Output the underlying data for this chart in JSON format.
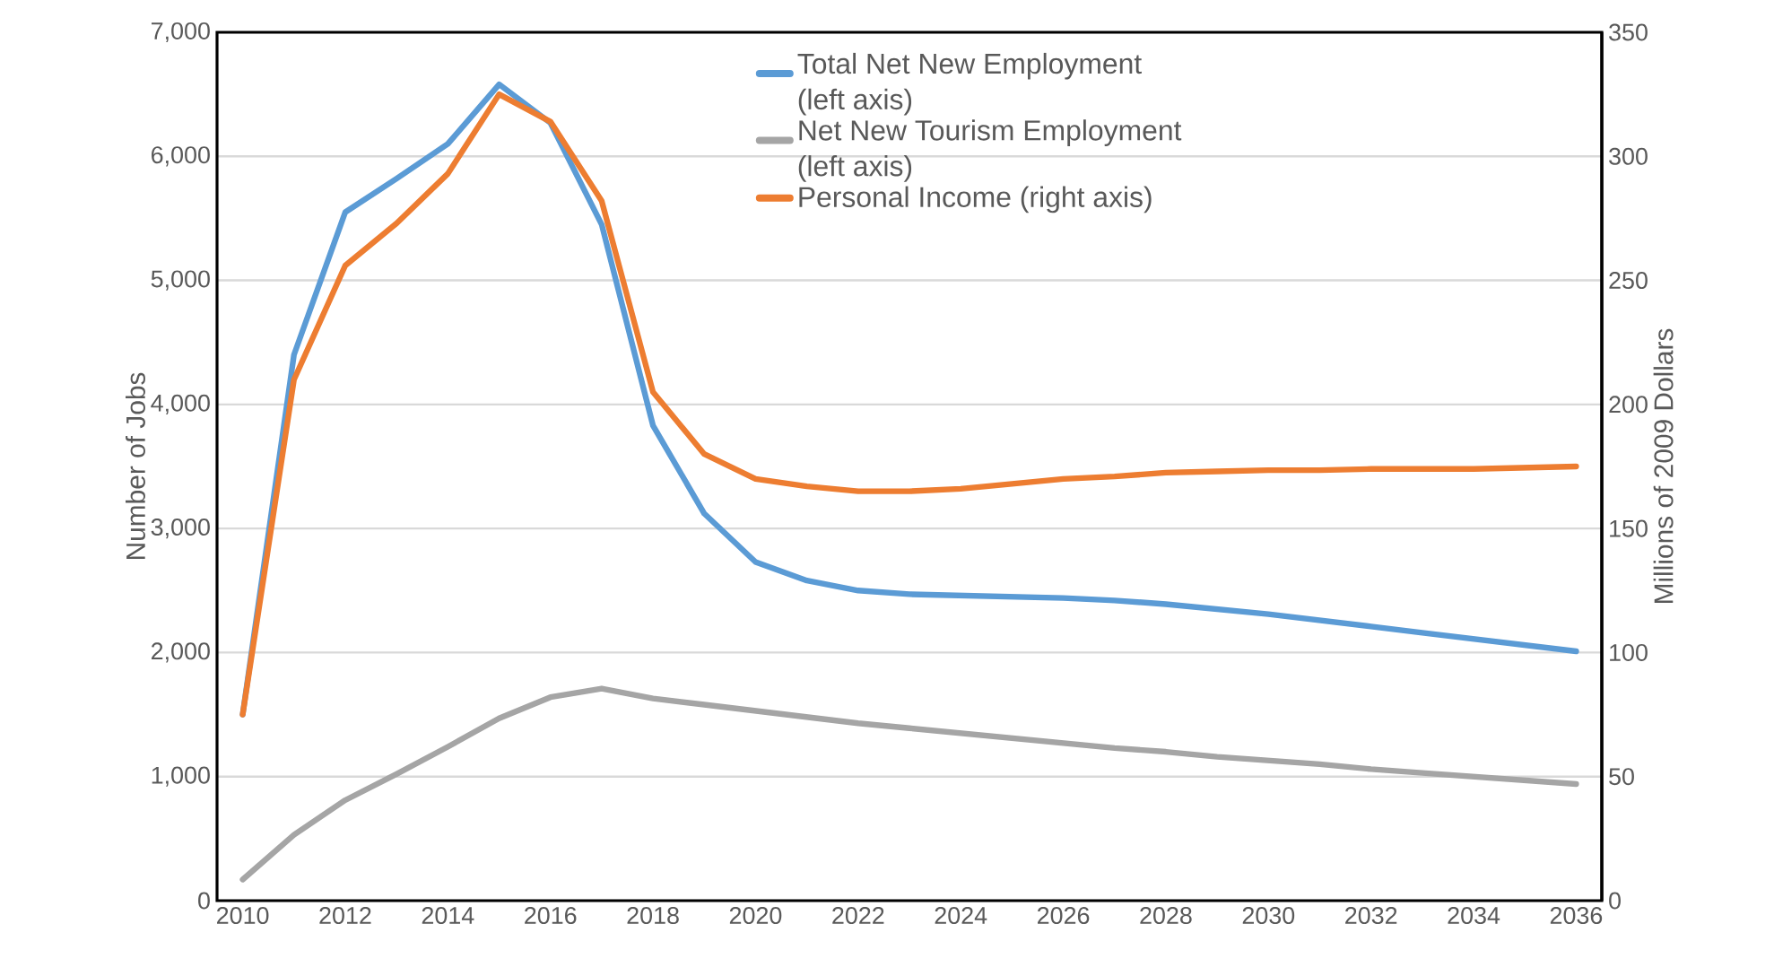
{
  "chart_data": {
    "type": "line",
    "ylabel": "Number of Jobs",
    "y2label": "Millions of 2009 Dollars",
    "x": [
      2010,
      2011,
      2012,
      2013,
      2014,
      2015,
      2016,
      2017,
      2018,
      2019,
      2020,
      2021,
      2022,
      2023,
      2024,
      2025,
      2026,
      2027,
      2028,
      2029,
      2030,
      2031,
      2032,
      2033,
      2034,
      2035,
      2036
    ],
    "series": [
      {
        "name": "Total Net New Employment (left axis)",
        "color": "#5b9bd5",
        "values": [
          1500,
          4400,
          5550,
          5820,
          6100,
          6580,
          6270,
          5450,
          3830,
          3120,
          2730,
          2580,
          2500,
          2470,
          2460,
          2450,
          2440,
          2420,
          2390,
          2350,
          2310,
          2260,
          2210,
          2160,
          2110,
          2060,
          2010
        ]
      },
      {
        "name": "Net New Tourism Employment (left axis)",
        "color": "#a5a5a5",
        "values": [
          170,
          530,
          810,
          1020,
          1240,
          1470,
          1640,
          1710,
          1630,
          1580,
          1530,
          1480,
          1430,
          1390,
          1350,
          1310,
          1270,
          1230,
          1200,
          1160,
          1130,
          1100,
          1060,
          1030,
          1000,
          970,
          940
        ]
      },
      {
        "name": "Personal Income (right axis)",
        "color": "#ed7d31",
        "axis": "y2",
        "values": [
          75,
          210,
          256,
          273,
          293,
          325,
          314,
          282,
          205,
          180,
          170,
          167,
          165,
          165,
          166,
          168,
          170,
          171,
          172.5,
          173,
          173.5,
          173.5,
          174,
          174,
          174,
          174.5,
          175
        ]
      }
    ],
    "xlim": [
      2009.5,
      2036.5
    ],
    "xticks": [
      2010,
      2012,
      2014,
      2016,
      2018,
      2020,
      2022,
      2024,
      2026,
      2028,
      2030,
      2032,
      2034,
      2036
    ],
    "ylim": [
      0,
      7000
    ],
    "yticks": [
      0,
      {
        "value": 1000,
        "label": "1,000"
      },
      {
        "value": 2000,
        "label": "2,000"
      },
      {
        "value": 3000,
        "label": "3,000"
      },
      {
        "value": 4000,
        "label": "4,000"
      },
      {
        "value": 5000,
        "label": "5,000"
      },
      {
        "value": 6000,
        "label": "6,000"
      },
      {
        "value": 7000,
        "label": "7,000"
      }
    ],
    "y2lim": [
      0,
      350
    ],
    "y2ticks": [
      0,
      50,
      100,
      150,
      200,
      250,
      300,
      350
    ],
    "grid": "y",
    "legend": "top",
    "marker": "none",
    "line_style": "solid"
  }
}
